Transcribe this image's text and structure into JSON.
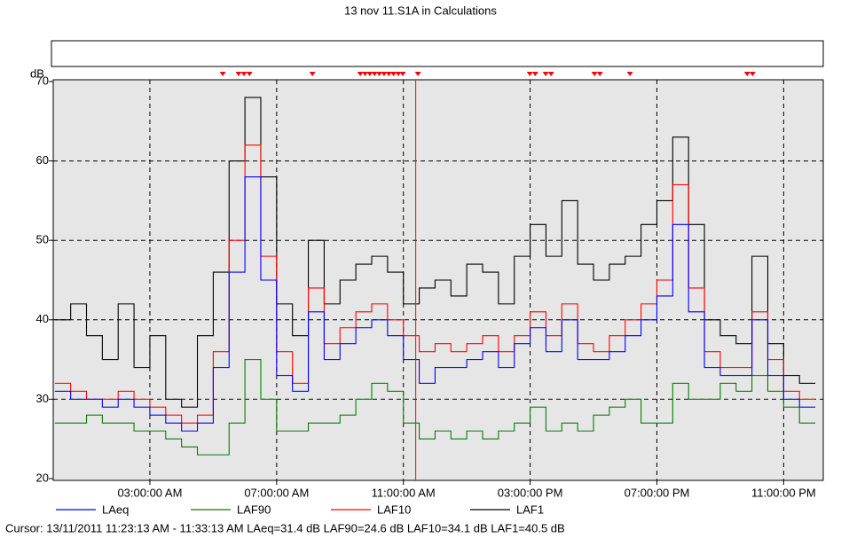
{
  "chart_data": {
    "type": "line",
    "title": "13 nov 11.S1A in Calculations",
    "y_label": "dB",
    "x": [
      0,
      0.5,
      1,
      1.5,
      2,
      2.5,
      3,
      3.5,
      4,
      4.5,
      5,
      5.5,
      6,
      6.5,
      7,
      7.5,
      8,
      8.5,
      9,
      9.5,
      10,
      10.5,
      11,
      11.5,
      12,
      12.5,
      13,
      13.5,
      14,
      14.5,
      15,
      15.5,
      16,
      16.5,
      17,
      17.5,
      18,
      18.5,
      19,
      19.5,
      20,
      20.5,
      21,
      21.5,
      22,
      22.5,
      23,
      23.5
    ],
    "series": [
      {
        "name": "LAeq",
        "color": "#0000ff",
        "values": [
          31,
          30,
          30,
          29,
          30,
          29,
          28,
          27,
          26,
          27,
          34,
          46,
          58,
          45,
          33,
          31,
          41,
          35,
          37,
          39,
          40,
          38,
          35,
          32,
          34,
          34,
          35,
          36,
          34,
          37,
          39,
          36,
          40,
          35,
          35,
          36,
          38,
          40,
          43,
          52,
          41,
          34,
          33,
          33,
          40,
          33,
          30,
          29
        ]
      },
      {
        "name": "LAF90",
        "color": "#008000",
        "values": [
          27,
          27,
          28,
          27,
          27,
          26,
          26,
          25,
          24,
          23,
          23,
          27,
          35,
          30,
          26,
          26,
          27,
          27,
          28,
          30,
          32,
          31,
          27,
          25,
          26,
          25,
          26,
          25,
          26,
          27,
          29,
          26,
          27,
          26,
          28,
          29,
          30,
          27,
          27,
          32,
          30,
          30,
          32,
          31,
          33,
          31,
          29,
          27
        ]
      },
      {
        "name": "LAF10",
        "color": "#ff0000",
        "values": [
          32,
          31,
          30,
          30,
          31,
          30,
          29,
          28,
          27,
          28,
          36,
          50,
          62,
          48,
          36,
          32,
          44,
          37,
          39,
          41,
          42,
          40,
          38,
          36,
          37,
          36,
          37,
          38,
          36,
          38,
          41,
          38,
          42,
          37,
          36,
          38,
          40,
          42,
          45,
          57,
          44,
          36,
          34,
          34,
          41,
          35,
          31,
          30
        ]
      },
      {
        "name": "LAF1",
        "color": "#000000",
        "values": [
          40,
          42,
          38,
          35,
          42,
          34,
          38,
          30,
          29,
          38,
          46,
          60,
          68,
          58,
          42,
          38,
          50,
          42,
          45,
          47,
          48,
          46,
          42,
          44,
          45,
          43,
          47,
          46,
          42,
          48,
          52,
          48,
          55,
          47,
          45,
          47,
          48,
          52,
          55,
          63,
          52,
          40,
          38,
          37,
          48,
          37,
          33,
          32
        ]
      }
    ],
    "xlim": [
      -0.05,
      24.25
    ],
    "ylim": [
      20,
      70
    ],
    "xticks": [
      {
        "value": 3,
        "label": "03:00:00 AM"
      },
      {
        "value": 7,
        "label": "07:00:00 AM"
      },
      {
        "value": 11,
        "label": "11:00:00 AM"
      },
      {
        "value": 15,
        "label": "03:00:00 PM"
      },
      {
        "value": 19,
        "label": "07:00:00 PM"
      },
      {
        "value": 23,
        "label": "11:00:00 PM"
      }
    ],
    "yticks": [
      20,
      30,
      40,
      50,
      60,
      70
    ],
    "grid": true,
    "markers": [
      5.3,
      5.8,
      5.97,
      6.14,
      8.13,
      9.64,
      9.79,
      9.94,
      10.09,
      10.24,
      10.39,
      10.54,
      10.69,
      10.84,
      10.98,
      11.46,
      14.99,
      15.16,
      15.49,
      15.66,
      17.03,
      17.2,
      18.15,
      21.85,
      22.02
    ],
    "marker_color": "#ff0000",
    "cursor_x": 11.39,
    "cursor_color": "#ff0000",
    "cursor_label": "Cursor: 13/11/2011 11:23:13 AM - 11:33:13 AM  LAeq=31.4 dB  LAF90=24.6 dB  LAF10=34.1 dB  LAF1=40.5 dB"
  }
}
